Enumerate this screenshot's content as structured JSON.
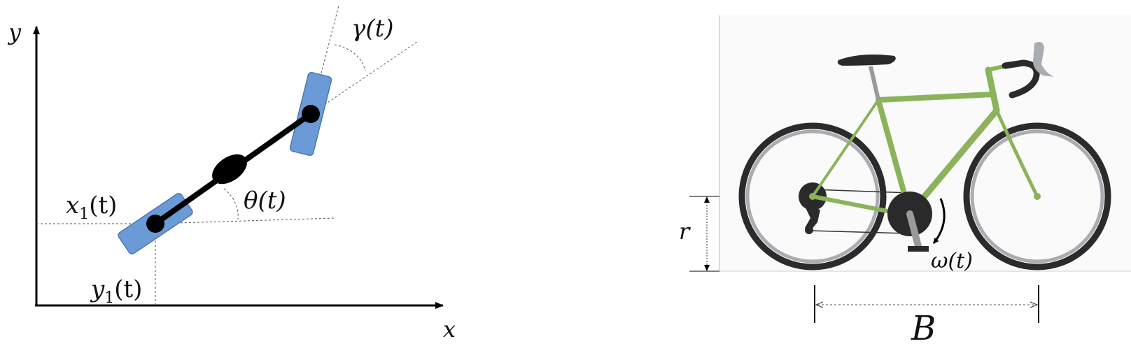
{
  "bicycle_model": {
    "axis_x_label": "x",
    "axis_y_label": "y",
    "x1_label": {
      "main": "x",
      "sub": "1",
      "arg": "(t)"
    },
    "y1_label": {
      "main": "y",
      "sub": "1",
      "arg": "(t)"
    },
    "theta_label": "θ(t)",
    "gamma_label": "γ(t)",
    "colors": {
      "wheel": "#6b9bd6",
      "wheel_edge": "#4a78b5",
      "body": "#000000"
    }
  },
  "bicycle_photo": {
    "radius_label": "r",
    "omega_label": "ω(t)",
    "wheelbase_label": "B",
    "colors": {
      "frame": "#8ab35a",
      "tire": "#2b2b2b",
      "rim": "#a9acb0",
      "metal": "#9a9a9a",
      "dark": "#2a2a2a"
    }
  }
}
